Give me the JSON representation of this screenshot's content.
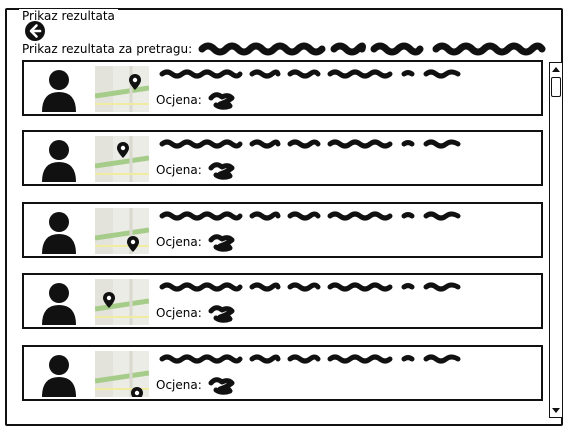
{
  "panel": {
    "title": "Prikaz rezultata"
  },
  "header": {
    "query_label": "Prikaz rezultata za pretragu:"
  },
  "results": [
    {
      "rating_label": "Ocjena:"
    },
    {
      "rating_label": "Ocjena:"
    },
    {
      "rating_label": "Ocjena:"
    },
    {
      "rating_label": "Ocjena:"
    },
    {
      "rating_label": "Ocjena:"
    }
  ],
  "icons": {
    "back": "arrow-left-circle-icon",
    "avatar": "user-avatar-icon",
    "map": "map-pin-icon",
    "scroll_up": "chevron-up-icon",
    "scroll_down": "chevron-down-icon"
  },
  "colors": {
    "ink": "#111111",
    "map_road": "#a6cc8a",
    "map_bg": "#e9e9e2"
  }
}
